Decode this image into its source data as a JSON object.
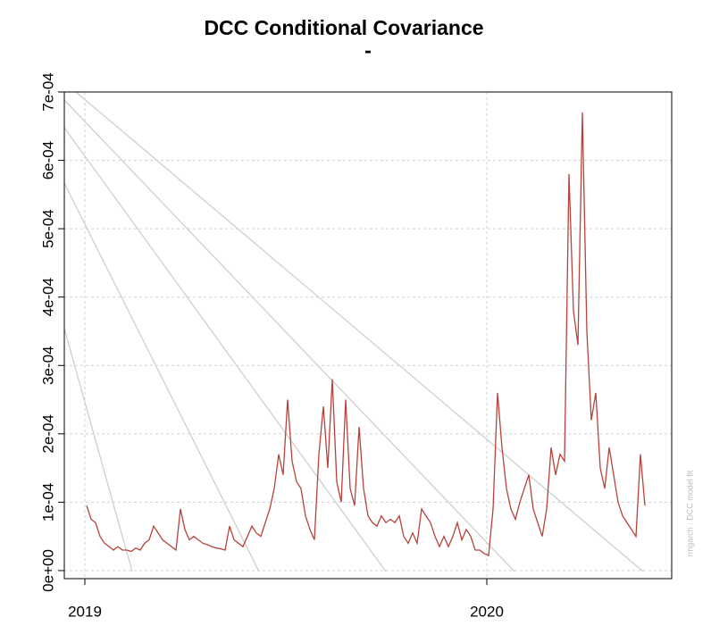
{
  "chart_data": {
    "type": "line",
    "title": "DCC Conditional Covariance",
    "subtitle": "-",
    "annotation": "rmgarch : DCC model fit",
    "x": [
      0,
      1,
      2,
      3,
      4,
      5,
      6,
      7,
      8,
      9,
      10,
      11,
      12,
      13,
      14,
      15,
      16,
      17,
      18,
      19,
      20,
      21,
      22,
      23,
      24,
      25,
      26,
      27,
      28,
      29,
      30,
      31,
      32,
      33,
      34,
      35,
      36,
      37,
      38,
      39,
      40,
      41,
      42,
      43,
      44,
      45,
      46,
      47,
      48,
      49,
      50,
      51,
      52,
      53,
      54,
      55,
      56,
      57,
      58,
      59,
      60,
      61,
      62,
      63,
      64,
      65,
      66,
      67,
      68,
      69,
      70,
      71,
      72,
      73,
      74,
      75,
      76,
      77,
      78,
      79,
      80,
      81,
      82,
      83,
      84,
      85,
      86,
      87,
      88,
      89,
      90,
      91,
      92,
      93,
      94,
      95,
      96,
      97,
      98,
      99,
      100,
      101,
      102,
      103,
      104,
      105,
      106,
      107,
      108,
      109,
      110,
      111,
      112,
      113,
      114,
      115,
      116,
      117,
      118,
      119,
      120,
      121,
      122,
      123,
      124,
      125
    ],
    "series": [
      {
        "color": "#b8423a",
        "values": [
          9.5e-05,
          7.5e-05,
          7e-05,
          5e-05,
          4e-05,
          3.5e-05,
          3e-05,
          3.5e-05,
          3e-05,
          3e-05,
          2.8e-05,
          3.3e-05,
          3e-05,
          4e-05,
          4.5e-05,
          6.5e-05,
          5.5e-05,
          4.5e-05,
          4e-05,
          3.5e-05,
          3e-05,
          9e-05,
          6e-05,
          4.5e-05,
          5e-05,
          4.5e-05,
          4e-05,
          3.8e-05,
          3.5e-05,
          3.3e-05,
          3.2e-05,
          3e-05,
          6.5e-05,
          4.5e-05,
          4e-05,
          3.5e-05,
          5e-05,
          6.5e-05,
          5.5e-05,
          5e-05,
          7e-05,
          9e-05,
          0.00012,
          0.00017,
          0.00014,
          0.00025,
          0.00016,
          0.00013,
          0.00012,
          8e-05,
          6e-05,
          4.5e-05,
          0.00017,
          0.00024,
          0.00015,
          0.00028,
          0.00013,
          0.0001,
          0.00025,
          0.00012,
          9.5e-05,
          0.00021,
          0.00012,
          8e-05,
          7e-05,
          6.5e-05,
          8e-05,
          7e-05,
          7.5e-05,
          7e-05,
          8e-05,
          5e-05,
          4e-05,
          5.5e-05,
          4e-05,
          9e-05,
          8e-05,
          7e-05,
          5e-05,
          3.5e-05,
          5e-05,
          3.5e-05,
          5e-05,
          7e-05,
          4.5e-05,
          6e-05,
          5e-05,
          3e-05,
          3e-05,
          2.5e-05,
          2.2e-05,
          9e-05,
          0.00026,
          0.00018,
          0.00012,
          9e-05,
          7.5e-05,
          0.0001,
          0.00012,
          0.00014,
          9e-05,
          7e-05,
          5e-05,
          9e-05,
          0.00018,
          0.00014,
          0.00017,
          0.00016,
          0.00058,
          0.00038,
          0.00033,
          0.00067,
          0.00035,
          0.00022,
          0.00026,
          0.00015,
          0.00012,
          0.00018,
          0.00014,
          0.0001,
          8e-05,
          7e-05,
          6e-05,
          5e-05,
          0.00017,
          9.5e-05
        ]
      }
    ],
    "xlim": [
      -5,
      131
    ],
    "xticks": [
      {
        "value": -0.4,
        "label": "2019"
      },
      {
        "value": 89.6,
        "label": "2020"
      }
    ],
    "ylim": [
      -1.18e-05,
      0.0007
    ],
    "yticks": [
      {
        "value": 0,
        "label": "0e+00"
      },
      {
        "value": 0.0001,
        "label": "1e-04"
      },
      {
        "value": 0.0002,
        "label": "2e-04"
      },
      {
        "value": 0.0003,
        "label": "3e-04"
      },
      {
        "value": 0.0004,
        "label": "4e-04"
      },
      {
        "value": 0.0005,
        "label": "5e-04"
      },
      {
        "value": 0.0006,
        "label": "6e-04"
      },
      {
        "value": 0.0007,
        "label": "7e-04"
      }
    ],
    "grid": true
  }
}
